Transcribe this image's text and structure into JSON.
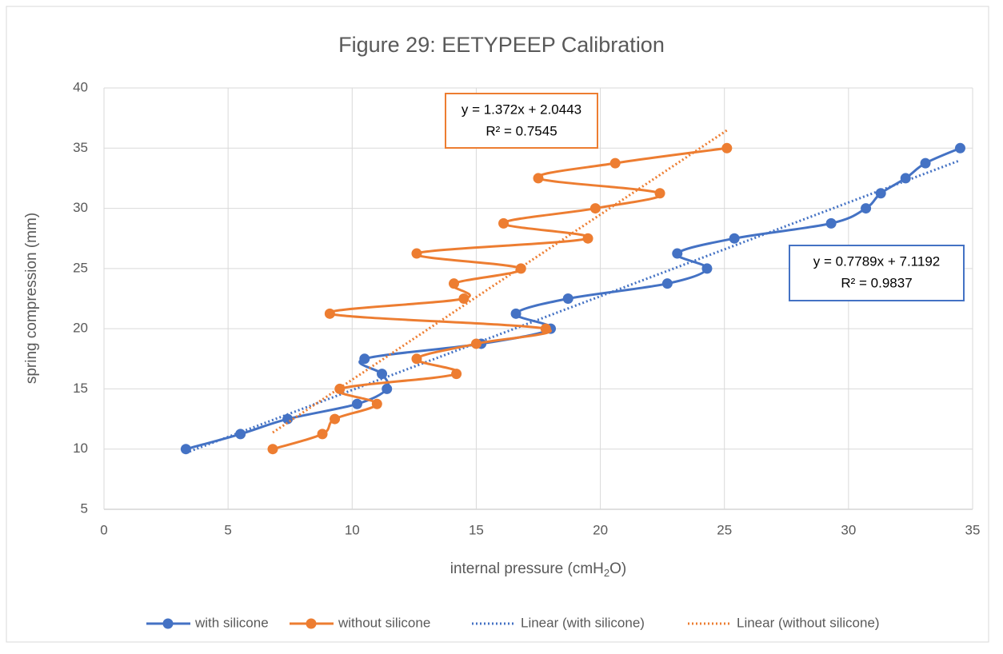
{
  "chart_data": {
    "type": "scatter",
    "title": "Figure 29:  EETYPEEP Calibration",
    "x_label_parts": [
      "internal pressure (cmH",
      "2",
      "O)"
    ],
    "y_label": "spring compression (mm)",
    "xlim": [
      0,
      35
    ],
    "xticks": [
      0,
      5,
      10,
      15,
      20,
      25,
      30,
      35
    ],
    "ylim": [
      5,
      40
    ],
    "yticks": [
      5,
      10,
      15,
      20,
      25,
      30,
      35,
      40
    ],
    "grid": true,
    "legend": "bottom",
    "smooth": true,
    "series": [
      {
        "name": "with silicone",
        "color": "#4472c4",
        "x": [
          3.3,
          5.5,
          7.4,
          10.2,
          11.4,
          11.2,
          10.5,
          15.2,
          18,
          16.6,
          18.7,
          22.7,
          24.3,
          23.1,
          25.4,
          29.3,
          30.7,
          31.3,
          32.3,
          33.1,
          34.5
        ],
        "values": [
          10,
          11.25,
          12.5,
          13.75,
          15,
          16.25,
          17.5,
          18.75,
          20,
          21.25,
          22.5,
          23.75,
          25,
          26.25,
          27.5,
          28.75,
          30,
          31.25,
          32.5,
          33.75,
          35
        ],
        "trendline": {
          "name": "Linear (with silicone)",
          "slope": 0.7789,
          "intercept": 7.1192,
          "equation": "y = 0.7789x + 7.1192",
          "r2": "R² = 0.9837"
        }
      },
      {
        "name": "without silicone",
        "color": "#ed7d31",
        "x": [
          6.8,
          8.8,
          9.3,
          11,
          9.5,
          14.2,
          12.6,
          15,
          17.8,
          9.1,
          14.5,
          14.1,
          16.8,
          12.6,
          19.5,
          16.1,
          19.8,
          22.4,
          17.5,
          20.6,
          25.1
        ],
        "values": [
          10,
          11.25,
          12.5,
          13.75,
          15,
          16.25,
          17.5,
          18.75,
          20,
          21.25,
          22.5,
          23.75,
          25,
          26.25,
          27.5,
          28.75,
          30,
          31.25,
          32.5,
          33.75,
          35
        ],
        "trendline": {
          "name": "Linear (without silicone)",
          "slope": 1.372,
          "intercept": 2.0443,
          "equation": "y = 1.372x + 2.0443",
          "r2": "R² = 0.7545"
        }
      }
    ]
  }
}
